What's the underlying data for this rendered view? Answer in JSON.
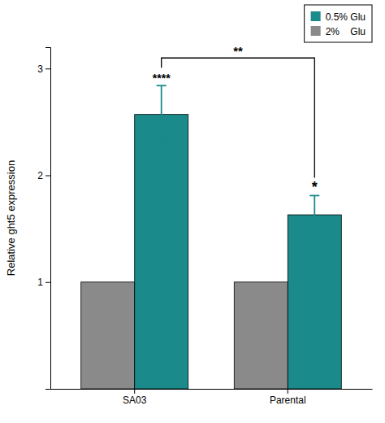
{
  "chart_data": {
    "type": "bar",
    "categories": [
      "SA03",
      "Parental"
    ],
    "y_label": "Relative ght5 expression",
    "series": [
      {
        "name": "2%    Glu",
        "color": "#8a8a8a",
        "values": [
          1.0,
          1.0
        ]
      },
      {
        "name": "0.5% Glu",
        "color": "#1a8a8a",
        "values": [
          2.57,
          1.63
        ],
        "errors": [
          0.27,
          0.18
        ]
      }
    ],
    "ylim": [
      0,
      3.2
    ],
    "yticks": [
      1,
      2,
      3
    ],
    "grid": false,
    "legend": "upper right",
    "annotations": [
      {
        "text": "****",
        "category": "SA03",
        "series": "0.5% Glu"
      },
      {
        "text": "*",
        "category": "Parental",
        "series": "0.5% Glu"
      },
      {
        "text": "**",
        "category": [
          "SA03",
          "Parental"
        ],
        "series": "0.5% Glu"
      }
    ]
  }
}
